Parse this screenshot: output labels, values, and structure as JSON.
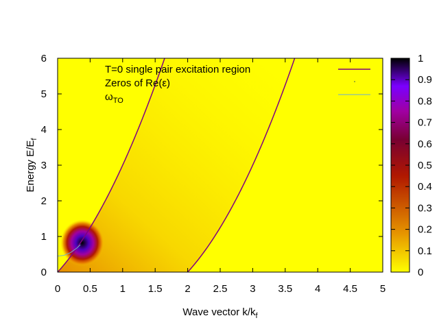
{
  "chart_data": {
    "type": "heatmap",
    "xlabel": {
      "main": "Wave vector k/k",
      "sub": "f"
    },
    "ylabel": {
      "main": "Energy E/E",
      "sub": "f"
    },
    "xlim": [
      0,
      5
    ],
    "ylim": [
      0,
      6
    ],
    "x_ticks": [
      "0",
      "0.5",
      "1",
      "1.5",
      "2",
      "2.5",
      "3",
      "3.5",
      "4",
      "4.5",
      "5"
    ],
    "y_ticks": [
      "0",
      "1",
      "2",
      "3",
      "4",
      "5",
      "6"
    ],
    "colorbar": {
      "range": [
        0,
        1
      ],
      "ticks": [
        "0",
        "0.1",
        "0.2",
        "0.3",
        "0.4",
        "0.5",
        "0.6",
        "0.7",
        "0.8",
        "0.9",
        "1"
      ],
      "stops": [
        "#ffff00",
        "#e69500",
        "#b01800",
        "#780032",
        "#a000a0",
        "#7a00ff",
        "#000000"
      ]
    },
    "legend": {
      "placement": "top-right",
      "entries": [
        {
          "label": "T=0 single pair excitation region",
          "color": "#800080",
          "style": "line"
        },
        {
          "label": "Zeros of Re(ε)",
          "color": "#2f4f4f",
          "style": "dots"
        },
        {
          "label_main": "ω",
          "label_sub": "TO",
          "color": "#6aaed6",
          "style": "line"
        }
      ]
    },
    "series": [
      {
        "boundary": "upper",
        "equation": "E = k^2 + 2k",
        "x": [
          0,
          0.5,
          1,
          1.5,
          1.65
        ],
        "y": [
          0,
          1.25,
          3,
          5.25,
          6.02
        ]
      },
      {
        "boundary": "lower",
        "equation": "E = k^2 - 2k",
        "x": [
          2,
          2.5,
          3,
          3.5,
          3.65
        ],
        "y": [
          0,
          1.25,
          3,
          5.25,
          6.02
        ]
      },
      {
        "curve": "omega_TO",
        "x": [
          0,
          0.1,
          0.2,
          0.3,
          0.35
        ],
        "y": [
          0.45,
          0.47,
          0.55,
          0.68,
          0.77
        ]
      }
    ],
    "background_value": 0
  }
}
